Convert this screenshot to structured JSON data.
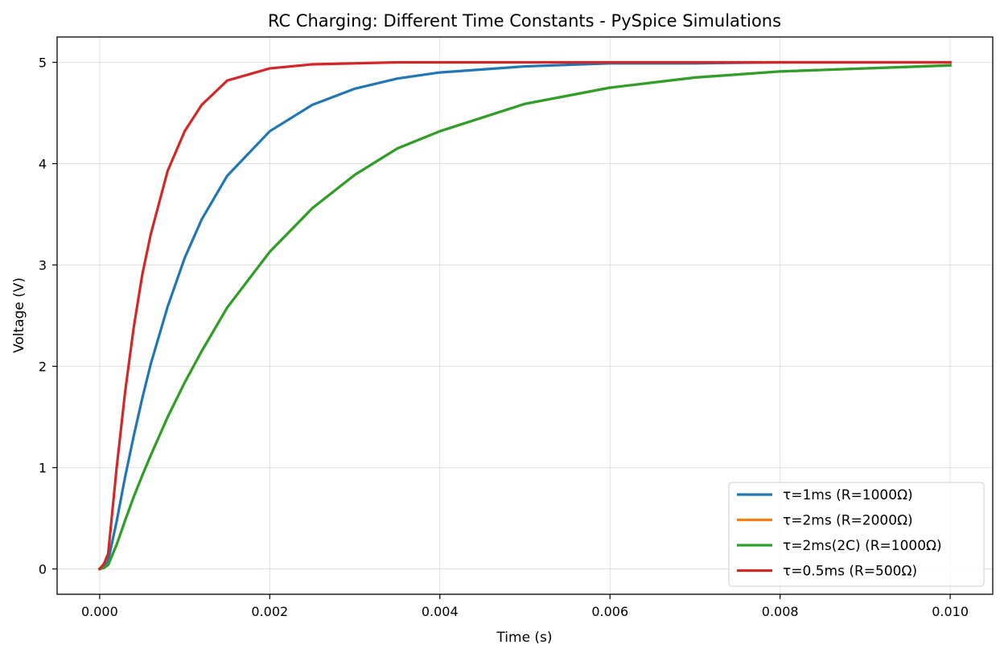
{
  "chart_data": {
    "type": "line",
    "title": "RC Charging: Different Time Constants - PySpice Simulations",
    "xlabel": "Time (s)",
    "ylabel": "Voltage (V)",
    "xlim": [
      -0.0005,
      0.0105
    ],
    "ylim": [
      -0.25,
      5.25
    ],
    "xticks": [
      0.0,
      0.002,
      0.004,
      0.006,
      0.008,
      0.01
    ],
    "xtick_labels": [
      "0.000",
      "0.002",
      "0.004",
      "0.006",
      "0.008",
      "0.010"
    ],
    "yticks": [
      0,
      1,
      2,
      3,
      4,
      5
    ],
    "ytick_labels": [
      "0",
      "1",
      "2",
      "3",
      "4",
      "5"
    ],
    "grid": true,
    "legend_position": "bottom-right",
    "series": [
      {
        "name": "τ=1ms (R=1000Ω)",
        "color": "#1f77b4",
        "x": [
          0.0,
          5e-05,
          0.0001,
          0.0002,
          0.0003,
          0.0004,
          0.0005,
          0.0006,
          0.0008,
          0.001,
          0.0012,
          0.0015,
          0.002,
          0.0025,
          0.003,
          0.0035,
          0.004,
          0.005,
          0.006,
          0.007,
          0.008,
          0.009,
          0.01
        ],
        "y": [
          0.0,
          0.02,
          0.08,
          0.47,
          0.91,
          1.31,
          1.68,
          2.02,
          2.59,
          3.07,
          3.45,
          3.88,
          4.32,
          4.58,
          4.74,
          4.84,
          4.9,
          4.96,
          4.99,
          4.99,
          5.0,
          5.0,
          5.0
        ]
      },
      {
        "name": "τ=2ms (R=2000Ω)",
        "color": "#ff7f0e",
        "x": [
          0.0,
          5e-05,
          0.0001,
          0.0002,
          0.0003,
          0.0004,
          0.0005,
          0.0006,
          0.0008,
          0.001,
          0.0012,
          0.0015,
          0.002,
          0.0025,
          0.003,
          0.0035,
          0.004,
          0.005,
          0.006,
          0.007,
          0.008,
          0.009,
          0.01
        ],
        "y": [
          0.0,
          0.01,
          0.04,
          0.24,
          0.48,
          0.71,
          0.92,
          1.12,
          1.5,
          1.84,
          2.15,
          2.58,
          3.13,
          3.56,
          3.89,
          4.15,
          4.32,
          4.59,
          4.75,
          4.85,
          4.91,
          4.94,
          4.97
        ]
      },
      {
        "name": "τ=2ms(2C) (R=1000Ω)",
        "color": "#2ca02c",
        "x": [
          0.0,
          5e-05,
          0.0001,
          0.0002,
          0.0003,
          0.0004,
          0.0005,
          0.0006,
          0.0008,
          0.001,
          0.0012,
          0.0015,
          0.002,
          0.0025,
          0.003,
          0.0035,
          0.004,
          0.005,
          0.006,
          0.007,
          0.008,
          0.009,
          0.01
        ],
        "y": [
          0.0,
          0.01,
          0.04,
          0.24,
          0.48,
          0.71,
          0.92,
          1.12,
          1.5,
          1.84,
          2.15,
          2.58,
          3.13,
          3.56,
          3.89,
          4.15,
          4.32,
          4.59,
          4.75,
          4.85,
          4.91,
          4.94,
          4.97
        ]
      },
      {
        "name": "τ=0.5ms (R=500Ω)",
        "color": "#d62728",
        "x": [
          0.0,
          5e-05,
          0.0001,
          0.0002,
          0.0003,
          0.0004,
          0.0005,
          0.0006,
          0.0008,
          0.001,
          0.0012,
          0.0015,
          0.002,
          0.0025,
          0.003,
          0.0035,
          0.004,
          0.005,
          0.006,
          0.007,
          0.008,
          0.009,
          0.01
        ],
        "y": [
          0.0,
          0.05,
          0.15,
          1.0,
          1.75,
          2.38,
          2.9,
          3.3,
          3.93,
          4.32,
          4.58,
          4.82,
          4.94,
          4.98,
          4.99,
          5.0,
          5.0,
          5.0,
          5.0,
          5.0,
          5.0,
          5.0,
          5.0
        ]
      }
    ]
  }
}
